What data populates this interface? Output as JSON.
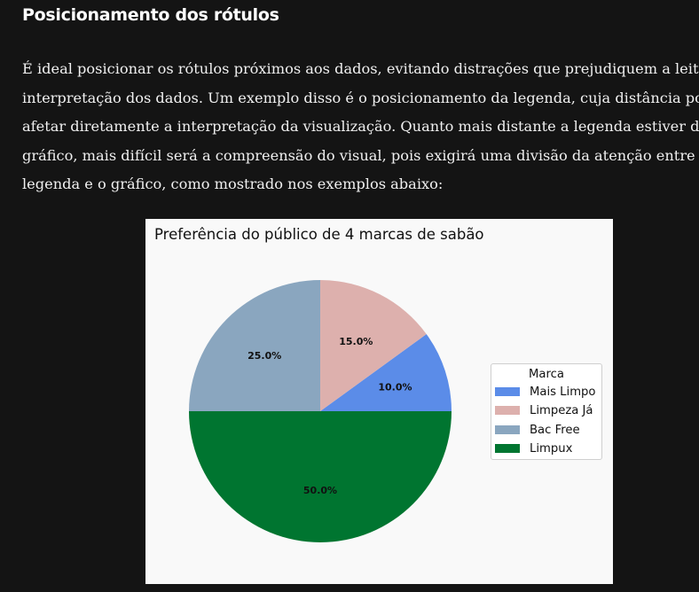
{
  "article": {
    "heading": "Posicionamento dos rótulos",
    "paragraph_lines": [
      "É ideal posicionar os rótulos próximos aos dados, evitando distrações que prejudiquem a leitura",
      "interpretação dos dados. Um exemplo disso é o posicionamento da legenda, cuja distância pode",
      "afetar diretamente a interpretação da visualização. Quanto mais distante a legenda estiver do",
      "gráfico, mais difícil será a compreensão do visual, pois exigirá uma divisão da atenção entre a",
      "legenda e o gráfico, como mostrado nos exemplos abaixo:"
    ]
  },
  "chart_data": {
    "type": "pie",
    "title": "Preferência do público de 4 marcas de sabão",
    "start_angle_deg": 0,
    "direction": "counterclockwise",
    "legend": {
      "title": "Marca",
      "placement": "right"
    },
    "slices": [
      {
        "label": "Mais Limpo",
        "value": 10.0,
        "value_label": "10.0%",
        "color": "#5b8ce8"
      },
      {
        "label": "Limpeza Já",
        "value": 15.0,
        "value_label": "15.0%",
        "color": "#ddb0ad"
      },
      {
        "label": "Bac Free",
        "value": 25.0,
        "value_label": "25.0%",
        "color": "#8aa6bf"
      },
      {
        "label": "Limpux",
        "value": 50.0,
        "value_label": "50.0%",
        "color": "#007530"
      }
    ]
  }
}
